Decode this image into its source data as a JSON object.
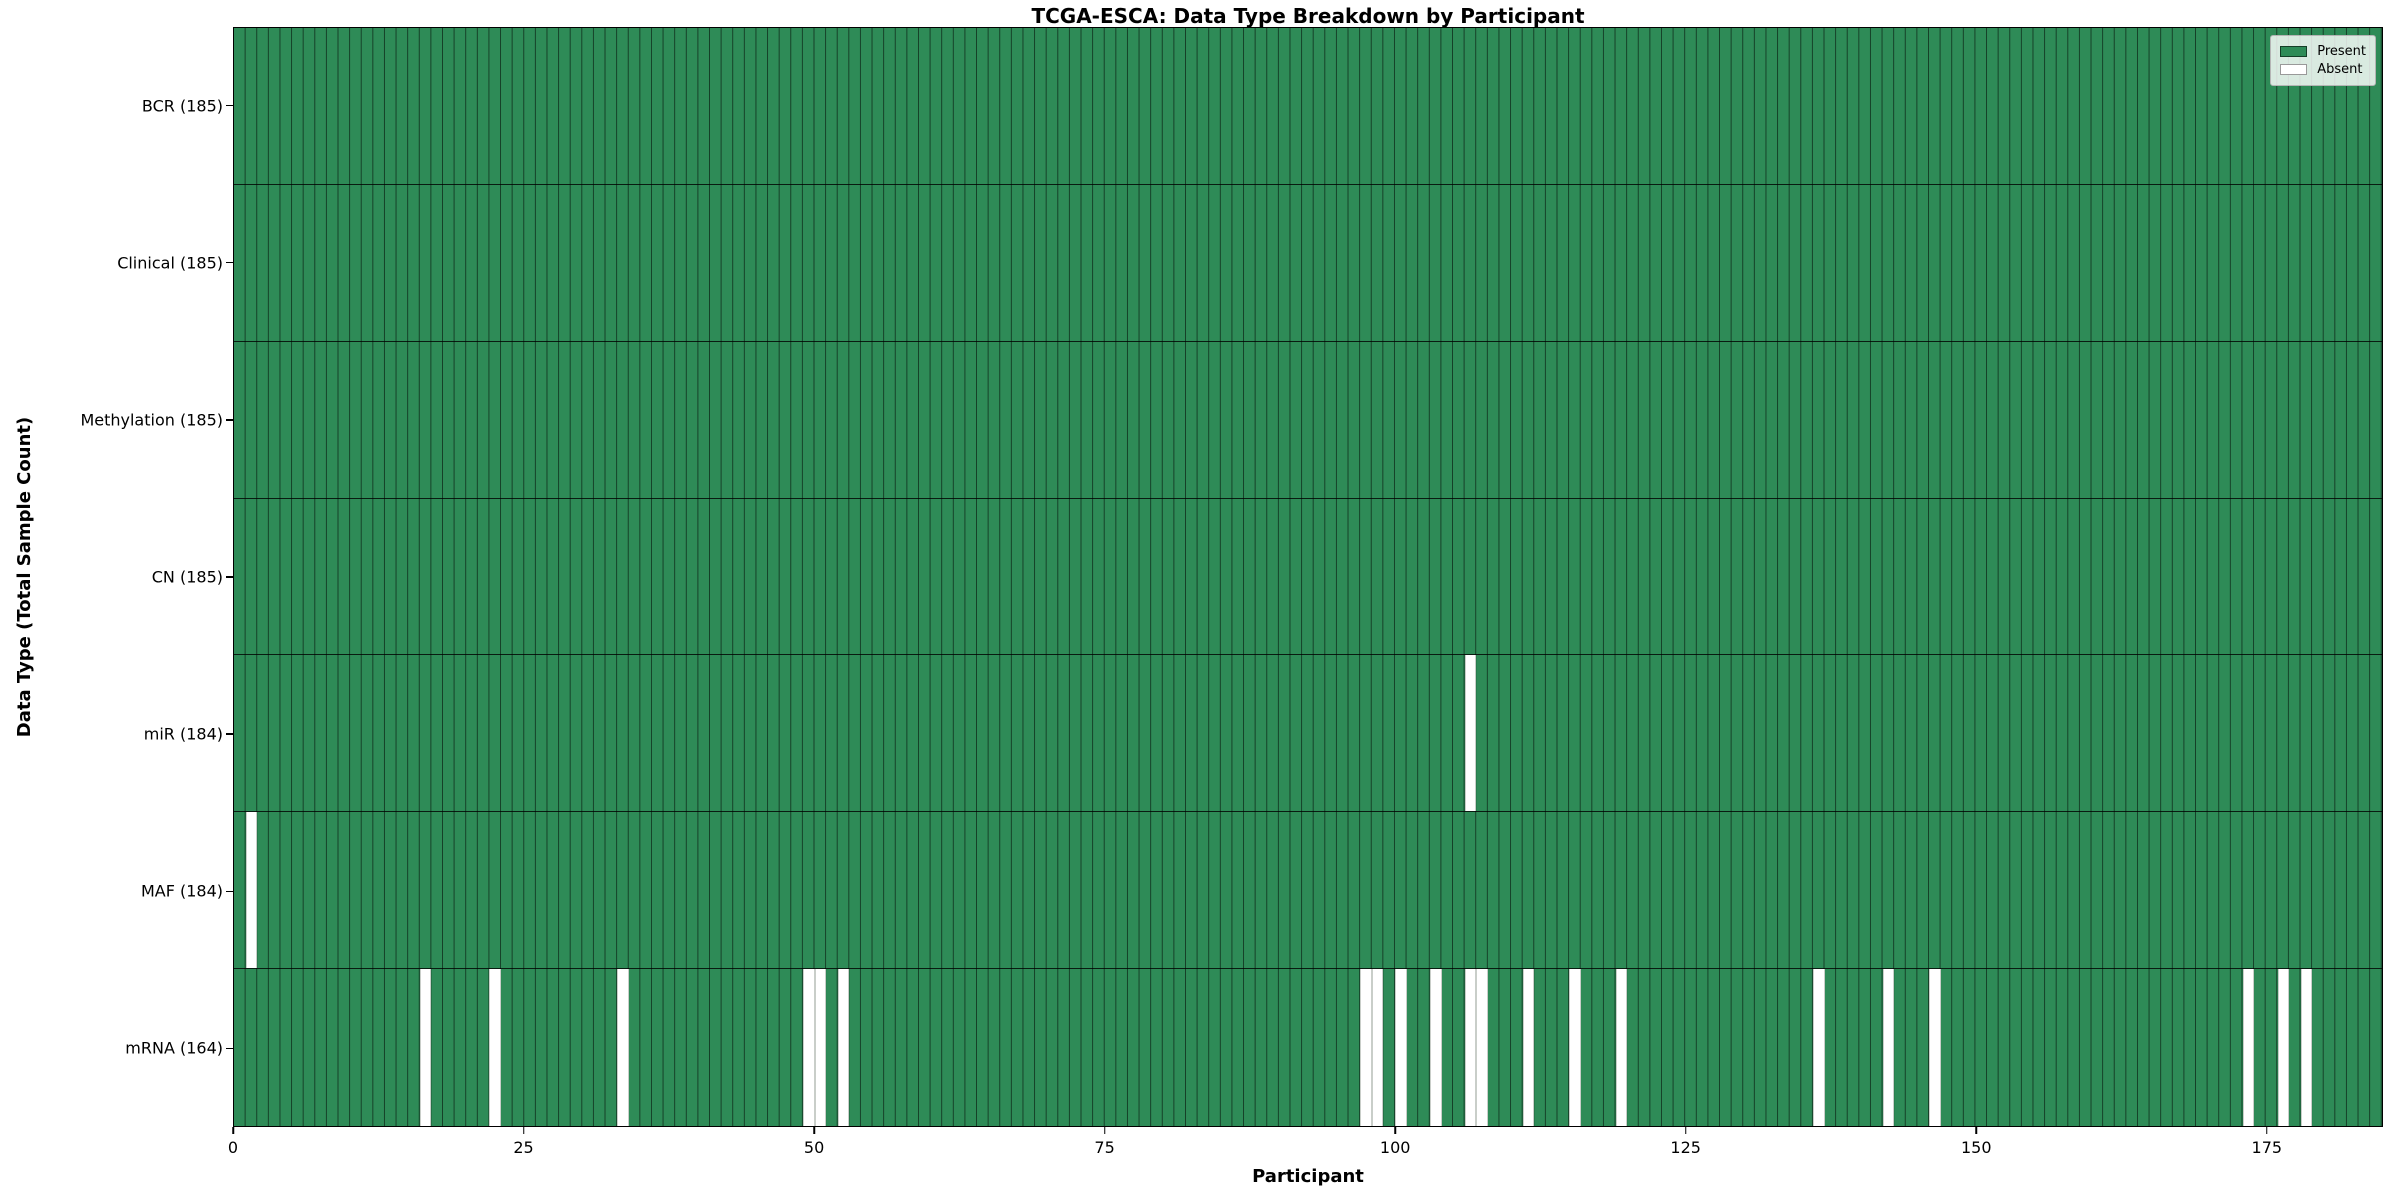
{
  "title": "TCGA-ESCA: Data Type Breakdown by Participant",
  "xlabel": "Participant",
  "ylabel": "Data Type (Total Sample Count)",
  "legend": {
    "present_label": "Present",
    "absent_label": "Absent"
  },
  "colors": {
    "present": "#2e8b57",
    "absent": "#ffffff",
    "cell_edge": "rgba(0,0,0,0.55)",
    "row_separator": "rgba(0,0,0,0.8)"
  },
  "chart_data": {
    "type": "heatmap",
    "title": "TCGA-ESCA: Data Type Breakdown by Participant",
    "xlabel": "Participant",
    "ylabel": "Data Type (Total Sample Count)",
    "x_range": [
      0,
      185
    ],
    "n_participants": 185,
    "x_ticks": [
      0,
      25,
      50,
      75,
      100,
      125,
      150,
      175
    ],
    "legend_entries": [
      "Present",
      "Absent"
    ],
    "legend_position": "upper right",
    "grid": "cell edges drawn as thin dark lines",
    "rows": [
      {
        "label": "BCR (185)",
        "data_type": "BCR",
        "count": 185,
        "absent_participants": []
      },
      {
        "label": "Clinical (185)",
        "data_type": "Clinical",
        "count": 185,
        "absent_participants": []
      },
      {
        "label": "Methylation (185)",
        "data_type": "Methylation",
        "count": 185,
        "absent_participants": []
      },
      {
        "label": "CN (185)",
        "data_type": "CN",
        "count": 185,
        "absent_participants": []
      },
      {
        "label": "miR (184)",
        "data_type": "miR",
        "count": 184,
        "absent_participants": [
          106
        ]
      },
      {
        "label": "MAF (184)",
        "data_type": "MAF",
        "count": 184,
        "absent_participants": [
          1
        ]
      },
      {
        "label": "mRNA (164)",
        "data_type": "mRNA",
        "count": 164,
        "absent_participants": [
          16,
          22,
          33,
          49,
          50,
          52,
          97,
          98,
          100,
          103,
          106,
          107,
          111,
          115,
          119,
          136,
          142,
          146,
          173,
          176,
          178
        ]
      }
    ]
  }
}
